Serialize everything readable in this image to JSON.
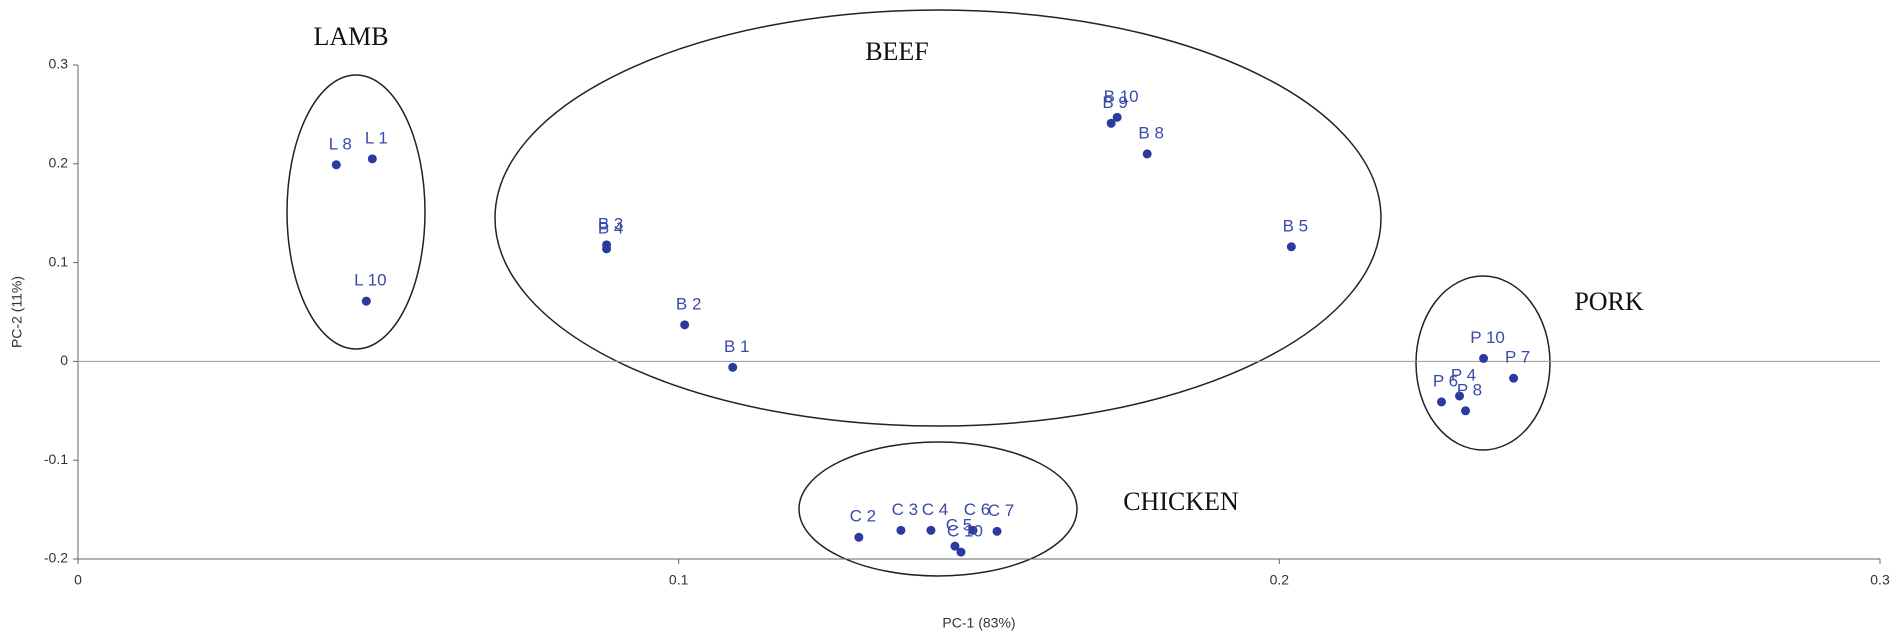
{
  "chart_data": {
    "type": "scatter",
    "xlabel": "PC-1 (83%)",
    "ylabel": "PC-2 (11%)",
    "xlim": [
      0,
      0.3
    ],
    "ylim": [
      -0.2,
      0.3
    ],
    "xticks": [
      0,
      0.1,
      0.2,
      0.3
    ],
    "yticks": [
      -0.2,
      -0.1,
      0,
      0.1,
      0.2,
      0.3
    ],
    "color": "#2b3a9e",
    "annotations": [
      "LAMB",
      "BEEF",
      "PORK",
      "CHICKEN"
    ],
    "point_labels": [
      "L 8",
      "L 1",
      "L 10",
      "B 1",
      "B 2",
      "B 3",
      "B 4",
      "B 9",
      "B 10",
      "B 8",
      "B 5",
      "P 10",
      "P 7",
      "P 4",
      "P 8",
      "P 6",
      "C 2",
      "C 3",
      "C 4",
      "C 5",
      "C 6",
      "C 7",
      "C 10"
    ],
    "x": [
      0.043,
      0.049,
      0.048,
      0.109,
      0.101,
      0.088,
      0.088,
      0.172,
      0.173,
      0.178,
      0.202,
      0.234,
      0.239,
      0.23,
      0.231,
      0.227,
      0.13,
      0.137,
      0.142,
      0.146,
      0.149,
      0.153,
      0.147
    ],
    "values": [
      0.199,
      0.205,
      0.061,
      -0.006,
      0.037,
      0.118,
      0.114,
      0.241,
      0.247,
      0.21,
      0.116,
      0.003,
      -0.017,
      -0.035,
      -0.05,
      -0.041,
      -0.178,
      -0.171,
      -0.171,
      -0.187,
      -0.171,
      -0.172,
      -0.193
    ]
  }
}
